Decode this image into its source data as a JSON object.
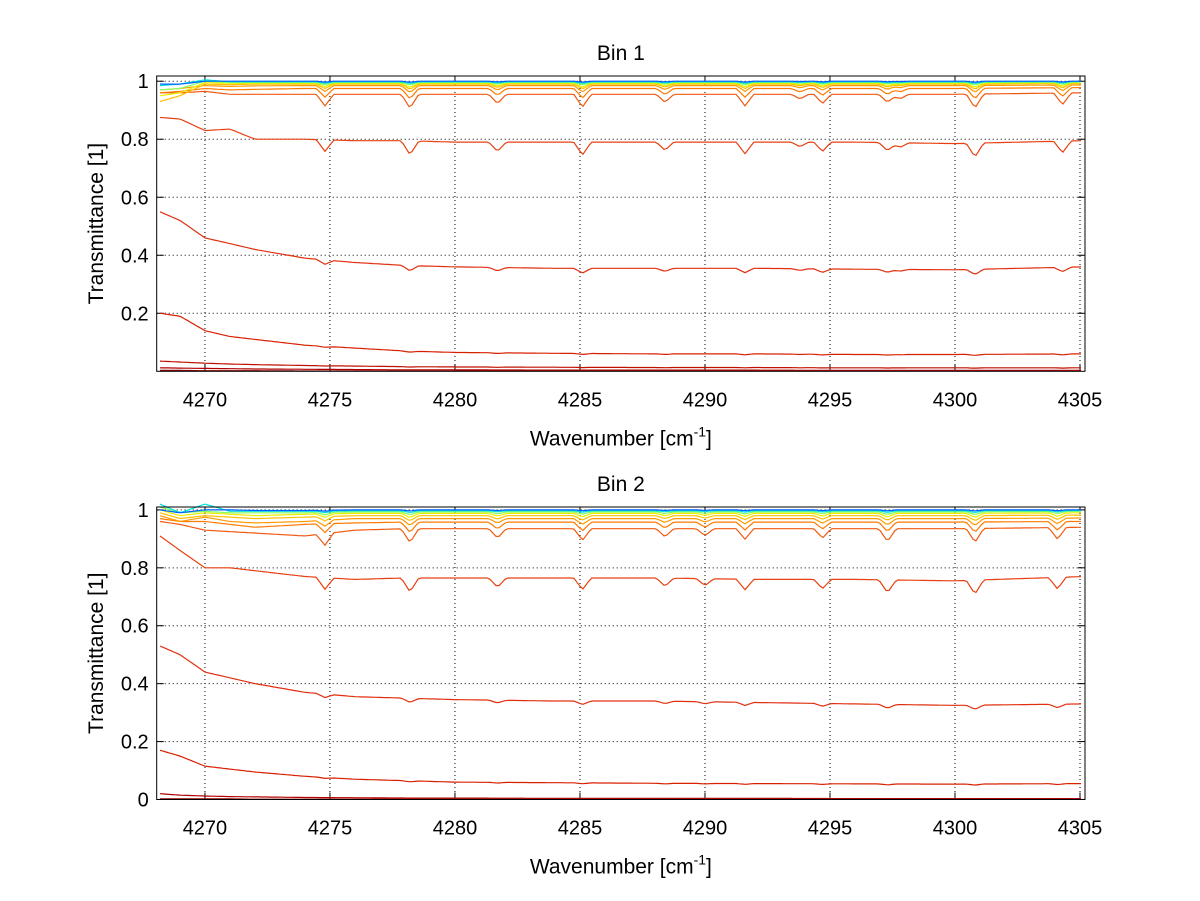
{
  "chart_data": [
    {
      "type": "line",
      "title": "Bin 1",
      "xlabel": "Wavenumber [cm",
      "xlabel_sup": "-1",
      "xlabel_end": "]",
      "ylabel": "Transmittance [1]",
      "xlim": [
        4268.07,
        4305.2
      ],
      "ylim": [
        0,
        1.018
      ],
      "grid": true,
      "xticks": [
        4270,
        4275,
        4280,
        4285,
        4290,
        4295,
        4300,
        4305
      ],
      "xtick_labels": [
        "4270",
        "4275",
        "4280",
        "4285",
        "4290",
        "4295",
        "4300",
        "4305"
      ],
      "yticks": [
        0.2,
        0.4,
        0.6,
        0.8,
        1
      ],
      "ytick_labels": [
        "0.2",
        "0.4",
        "0.6",
        "0.8",
        "1"
      ],
      "x": [
        4268.2,
        4269,
        4270,
        4271,
        4272,
        4274,
        4276,
        4278,
        4280,
        4284,
        4288,
        4292,
        4296,
        4300,
        4305.1
      ],
      "absorption_lines": [
        {
          "x": 4274.8,
          "rel": 1.0
        },
        {
          "x": 4278.2,
          "rel": 1.2
        },
        {
          "x": 4281.7,
          "rel": 0.8
        },
        {
          "x": 4285.1,
          "rel": 1.1
        },
        {
          "x": 4288.4,
          "rel": 0.7
        },
        {
          "x": 4291.6,
          "rel": 1.0
        },
        {
          "x": 4293.8,
          "rel": 0.4
        },
        {
          "x": 4294.7,
          "rel": 0.8
        },
        {
          "x": 4297.3,
          "rel": 0.7
        },
        {
          "x": 4297.8,
          "rel": 0.4
        },
        {
          "x": 4300.8,
          "rel": 1.2
        },
        {
          "x": 4304.3,
          "rel": 1.0
        }
      ],
      "series": [
        {
          "color": "#900000",
          "depth": 0.0,
          "values": [
            0.003,
            0.003,
            0.002,
            0.002,
            0.002,
            0.001,
            0.001,
            0.001,
            0.001,
            0.001,
            0.001,
            0.001,
            0.001,
            0.001,
            0.001
          ]
        },
        {
          "color": "#b00000",
          "depth": 0.0,
          "values": [
            0.012,
            0.011,
            0.01,
            0.009,
            0.008,
            0.007,
            0.006,
            0.005,
            0.005,
            0.004,
            0.004,
            0.004,
            0.003,
            0.003,
            0.003
          ]
        },
        {
          "color": "#c01000",
          "depth": 0.001,
          "values": [
            0.035,
            0.032,
            0.028,
            0.025,
            0.023,
            0.02,
            0.018,
            0.016,
            0.015,
            0.014,
            0.013,
            0.013,
            0.012,
            0.012,
            0.012
          ]
        },
        {
          "color": "#d82000",
          "depth": 0.003,
          "values": [
            0.2,
            0.19,
            0.14,
            0.12,
            0.11,
            0.09,
            0.08,
            0.07,
            0.065,
            0.062,
            0.06,
            0.06,
            0.058,
            0.058,
            0.06
          ]
        },
        {
          "color": "#e03010",
          "depth": 0.015,
          "values": [
            0.55,
            0.52,
            0.46,
            0.44,
            0.42,
            0.39,
            0.375,
            0.365,
            0.36,
            0.355,
            0.355,
            0.355,
            0.352,
            0.35,
            0.36
          ]
        },
        {
          "color": "#e84010",
          "depth": 0.04,
          "values": [
            0.875,
            0.87,
            0.83,
            0.835,
            0.8,
            0.8,
            0.795,
            0.795,
            0.79,
            0.79,
            0.79,
            0.79,
            0.79,
            0.785,
            0.795
          ]
        },
        {
          "color": "#f05a10",
          "depth": 0.04,
          "values": [
            0.96,
            0.96,
            0.965,
            0.955,
            0.955,
            0.955,
            0.955,
            0.955,
            0.955,
            0.955,
            0.955,
            0.955,
            0.955,
            0.955,
            0.96
          ]
        },
        {
          "color": "#ff7a00",
          "depth": 0.03,
          "values": [
            0.96,
            0.965,
            0.975,
            0.97,
            0.972,
            0.975,
            0.975,
            0.975,
            0.975,
            0.975,
            0.975,
            0.975,
            0.975,
            0.975,
            0.978
          ]
        },
        {
          "color": "#ff9a00",
          "depth": 0.02,
          "values": [
            0.97,
            0.975,
            0.985,
            0.982,
            0.984,
            0.985,
            0.985,
            0.985,
            0.985,
            0.985,
            0.985,
            0.985,
            0.985,
            0.985,
            0.987
          ]
        },
        {
          "color": "#ffc000",
          "depth": 0.015,
          "values": [
            0.93,
            0.95,
            0.99,
            0.988,
            0.99,
            0.99,
            0.99,
            0.99,
            0.99,
            0.99,
            0.99,
            0.99,
            0.99,
            0.99,
            0.992
          ]
        },
        {
          "color": "#e8f000",
          "depth": 0.012,
          "values": [
            0.95,
            0.96,
            0.995,
            0.993,
            0.993,
            0.993,
            0.993,
            0.993,
            0.993,
            0.993,
            0.993,
            0.993,
            0.993,
            0.993,
            0.995
          ]
        },
        {
          "color": "#80ff60",
          "depth": 0.008,
          "values": [
            0.97,
            0.975,
            1.0,
            0.996,
            0.996,
            0.996,
            0.996,
            0.996,
            0.996,
            0.996,
            0.996,
            0.996,
            0.996,
            0.996,
            0.997
          ]
        },
        {
          "color": "#00e0e0",
          "depth": 0.005,
          "values": [
            0.985,
            0.99,
            1.005,
            0.998,
            0.998,
            0.998,
            0.998,
            0.998,
            0.998,
            0.998,
            0.998,
            0.998,
            0.998,
            0.998,
            0.999
          ]
        },
        {
          "color": "#0060ff",
          "depth": 0.003,
          "values": [
            0.99,
            0.99,
            1.0,
            1.0,
            1.0,
            1.0,
            1.0,
            1.0,
            1.0,
            1.0,
            1.0,
            1.0,
            1.0,
            1.0,
            1.0
          ]
        }
      ]
    },
    {
      "type": "line",
      "title": "Bin 2",
      "xlabel": "Wavenumber [cm",
      "xlabel_sup": "-1",
      "xlabel_end": "]",
      "ylabel": "Transmittance [1]",
      "xlim": [
        4268.07,
        4305.2
      ],
      "ylim": [
        0,
        1.01
      ],
      "grid": true,
      "xticks": [
        4270,
        4275,
        4280,
        4285,
        4290,
        4295,
        4300,
        4305
      ],
      "xtick_labels": [
        "4270",
        "4275",
        "4280",
        "4285",
        "4290",
        "4295",
        "4300",
        "4305"
      ],
      "yticks": [
        0,
        0.2,
        0.4,
        0.6,
        0.8,
        1
      ],
      "ytick_labels": [
        "0",
        "0.2",
        "0.4",
        "0.6",
        "0.8",
        "1"
      ],
      "x": [
        4268.2,
        4269,
        4270,
        4271,
        4272,
        4274,
        4276,
        4278,
        4280,
        4284,
        4288,
        4292,
        4296,
        4300,
        4305.1
      ],
      "absorption_lines": [
        {
          "x": 4274.8,
          "rel": 1.0
        },
        {
          "x": 4278.2,
          "rel": 1.2
        },
        {
          "x": 4281.7,
          "rel": 0.8
        },
        {
          "x": 4285.1,
          "rel": 1.0
        },
        {
          "x": 4288.4,
          "rel": 0.7
        },
        {
          "x": 4290.0,
          "rel": 0.6
        },
        {
          "x": 4291.6,
          "rel": 0.9
        },
        {
          "x": 4294.7,
          "rel": 0.8
        },
        {
          "x": 4297.3,
          "rel": 1.1
        },
        {
          "x": 4300.8,
          "rel": 1.2
        },
        {
          "x": 4304.1,
          "rel": 1.0
        }
      ],
      "series": [
        {
          "color": "#900000",
          "depth": 0.0,
          "values": [
            0.002,
            0.002,
            0.002,
            0.002,
            0.001,
            0.001,
            0.001,
            0.001,
            0.001,
            0.001,
            0.001,
            0.001,
            0.001,
            0.001,
            0.001
          ]
        },
        {
          "color": "#b00000",
          "depth": 0.0,
          "values": [
            0.02,
            0.015,
            0.012,
            0.01,
            0.009,
            0.007,
            0.006,
            0.005,
            0.005,
            0.004,
            0.004,
            0.004,
            0.003,
            0.003,
            0.003
          ]
        },
        {
          "color": "#d82000",
          "depth": 0.003,
          "values": [
            0.17,
            0.15,
            0.115,
            0.105,
            0.095,
            0.08,
            0.07,
            0.065,
            0.06,
            0.058,
            0.056,
            0.055,
            0.054,
            0.053,
            0.055
          ]
        },
        {
          "color": "#e03010",
          "depth": 0.012,
          "values": [
            0.53,
            0.5,
            0.44,
            0.42,
            0.4,
            0.37,
            0.355,
            0.35,
            0.345,
            0.34,
            0.34,
            0.335,
            0.33,
            0.325,
            0.33
          ]
        },
        {
          "color": "#e84010",
          "depth": 0.04,
          "values": [
            0.91,
            0.86,
            0.8,
            0.8,
            0.79,
            0.77,
            0.76,
            0.765,
            0.765,
            0.765,
            0.765,
            0.76,
            0.76,
            0.755,
            0.77
          ]
        },
        {
          "color": "#f05a10",
          "depth": 0.04,
          "values": [
            0.96,
            0.95,
            0.93,
            0.925,
            0.92,
            0.91,
            0.93,
            0.935,
            0.935,
            0.935,
            0.935,
            0.935,
            0.935,
            0.935,
            0.94
          ]
        },
        {
          "color": "#ff7a00",
          "depth": 0.03,
          "values": [
            0.97,
            0.96,
            0.96,
            0.95,
            0.94,
            0.95,
            0.955,
            0.958,
            0.958,
            0.958,
            0.958,
            0.958,
            0.958,
            0.958,
            0.96
          ]
        },
        {
          "color": "#ff9a00",
          "depth": 0.02,
          "values": [
            0.98,
            0.96,
            0.975,
            0.96,
            0.955,
            0.96,
            0.97,
            0.97,
            0.97,
            0.97,
            0.97,
            0.97,
            0.97,
            0.97,
            0.972
          ]
        },
        {
          "color": "#ffc000",
          "depth": 0.015,
          "values": [
            0.99,
            0.97,
            0.98,
            0.975,
            0.97,
            0.975,
            0.98,
            0.98,
            0.98,
            0.98,
            0.98,
            0.98,
            0.98,
            0.98,
            0.982
          ]
        },
        {
          "color": "#e8f000",
          "depth": 0.012,
          "values": [
            1.0,
            0.98,
            0.99,
            0.985,
            0.98,
            0.985,
            0.988,
            0.988,
            0.988,
            0.988,
            0.988,
            0.988,
            0.988,
            0.988,
            0.99
          ]
        },
        {
          "color": "#80ff60",
          "depth": 0.008,
          "values": [
            1.01,
            0.99,
            0.995,
            0.99,
            0.99,
            0.99,
            0.993,
            0.993,
            0.993,
            0.993,
            0.993,
            0.993,
            0.993,
            0.993,
            0.995
          ]
        },
        {
          "color": "#00e0e0",
          "depth": 0.005,
          "values": [
            1.02,
            0.99,
            1.02,
            0.995,
            0.995,
            0.995,
            0.997,
            0.997,
            0.997,
            0.997,
            0.997,
            0.997,
            0.997,
            0.997,
            0.998
          ]
        },
        {
          "color": "#0060ff",
          "depth": 0.003,
          "values": [
            1.0,
            0.99,
            1.0,
            1.0,
            0.998,
            0.998,
            1.0,
            1.0,
            1.0,
            1.0,
            1.0,
            1.0,
            1.0,
            1.0,
            1.0
          ]
        }
      ]
    }
  ]
}
